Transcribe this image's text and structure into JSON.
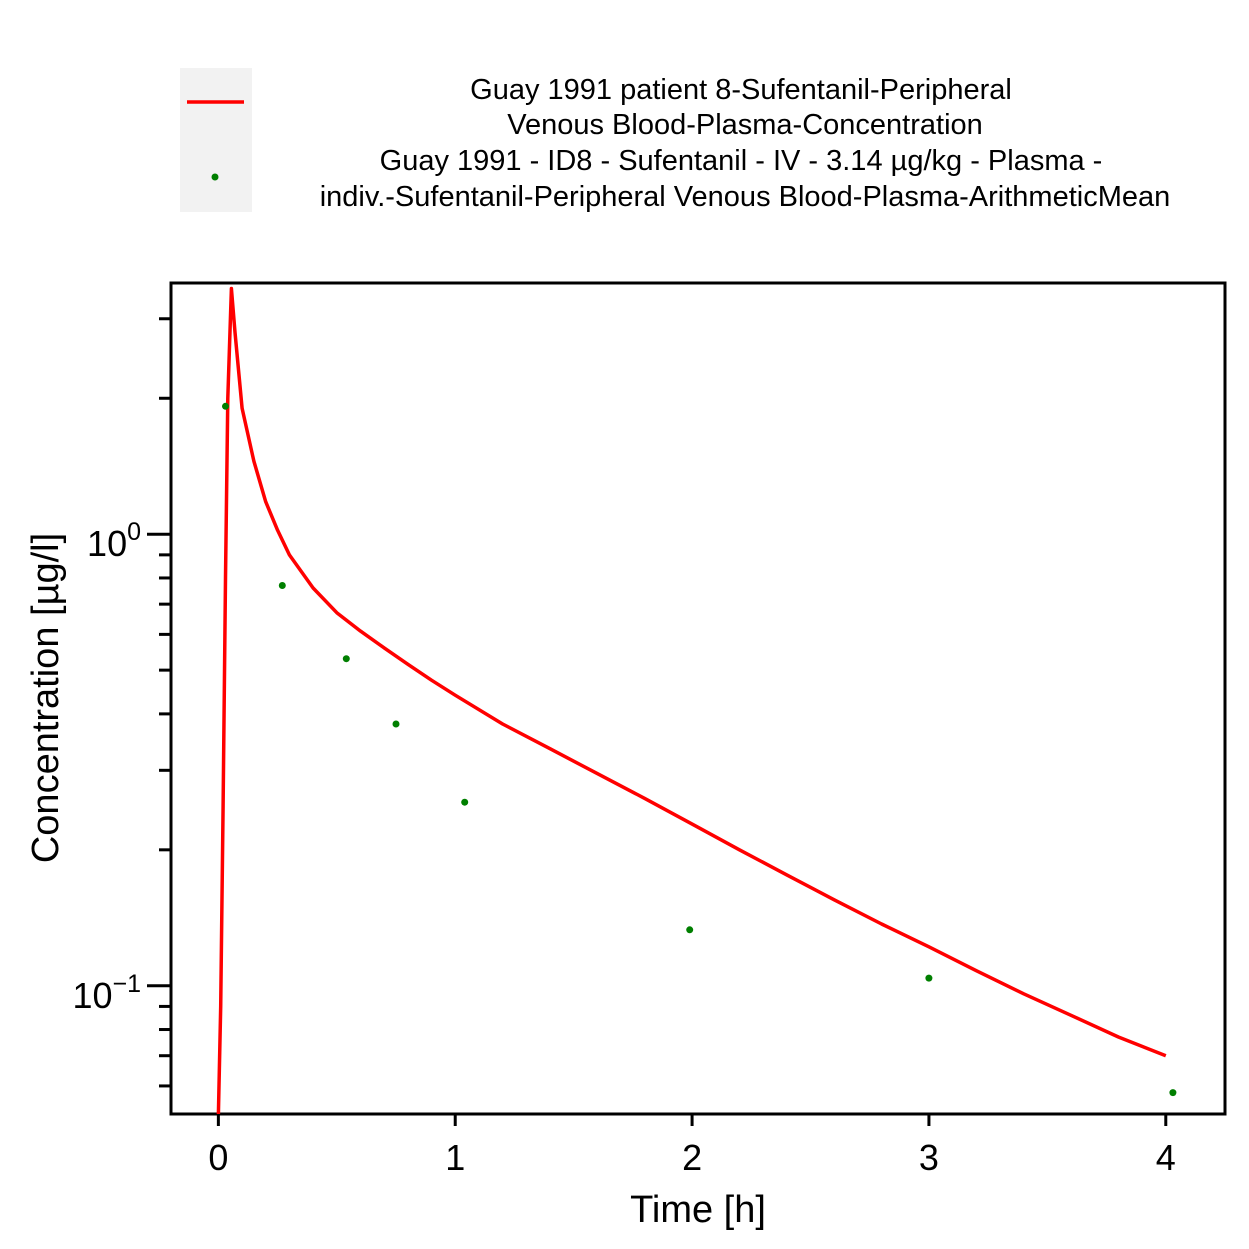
{
  "chart_data": {
    "type": "line",
    "title": "",
    "xlabel": "Time [h]",
    "ylabel": "Concentration [µg/l]",
    "xlim": [
      -0.2,
      4.25
    ],
    "ylim": [
      0.052,
      3.6
    ],
    "yscale": "log",
    "grid": false,
    "legend_position": "top",
    "x_ticks": [
      {
        "value": 0,
        "label": "0"
      },
      {
        "value": 1,
        "label": "1"
      },
      {
        "value": 2,
        "label": "2"
      },
      {
        "value": 3,
        "label": "3"
      },
      {
        "value": 4,
        "label": "4"
      }
    ],
    "y_major_ticks": [
      {
        "value": 1,
        "base": "10",
        "exp": "0"
      },
      {
        "value": 0.1,
        "base": "10",
        "exp": "−1"
      }
    ],
    "y_minor_ticks": [
      0.06,
      0.07,
      0.08,
      0.09,
      0.2,
      0.3,
      0.4,
      0.5,
      0.6,
      0.7,
      0.8,
      0.9,
      2,
      3
    ],
    "series": [
      {
        "name_lines": [
          "Guay 1991 patient 8-Sufentanil-Peripheral",
          "Venous Blood-Plasma-Concentration"
        ],
        "kind": "line",
        "color": "#ff0000",
        "points": [
          [
            0.0,
            0.052
          ],
          [
            0.01,
            0.09
          ],
          [
            0.02,
            0.25
          ],
          [
            0.03,
            0.8
          ],
          [
            0.04,
            2.0
          ],
          [
            0.055,
            3.5
          ],
          [
            0.07,
            2.8
          ],
          [
            0.1,
            1.9
          ],
          [
            0.15,
            1.45
          ],
          [
            0.2,
            1.18
          ],
          [
            0.25,
            1.02
          ],
          [
            0.3,
            0.9
          ],
          [
            0.4,
            0.76
          ],
          [
            0.5,
            0.67
          ],
          [
            0.6,
            0.61
          ],
          [
            0.7,
            0.56
          ],
          [
            0.8,
            0.515
          ],
          [
            0.9,
            0.475
          ],
          [
            1.0,
            0.44
          ],
          [
            1.2,
            0.38
          ],
          [
            1.4,
            0.335
          ],
          [
            1.6,
            0.295
          ],
          [
            1.8,
            0.26
          ],
          [
            2.0,
            0.228
          ],
          [
            2.2,
            0.2
          ],
          [
            2.4,
            0.176
          ],
          [
            2.6,
            0.155
          ],
          [
            2.8,
            0.137
          ],
          [
            3.0,
            0.122
          ],
          [
            3.2,
            0.108
          ],
          [
            3.4,
            0.096
          ],
          [
            3.6,
            0.086
          ],
          [
            3.8,
            0.077
          ],
          [
            4.0,
            0.07
          ]
        ]
      },
      {
        "name_lines": [
          "Guay 1991 - ID8 - Sufentanil - IV - 3.14 µg/kg - Plasma -",
          "indiv.-Sufentanil-Peripheral Venous Blood-Plasma-ArithmeticMean"
        ],
        "kind": "scatter",
        "color": "#007f00",
        "points": [
          [
            0.03,
            1.92
          ],
          [
            0.27,
            0.77
          ],
          [
            0.54,
            0.53
          ],
          [
            0.75,
            0.38
          ],
          [
            1.04,
            0.255
          ],
          [
            1.99,
            0.133
          ],
          [
            3.0,
            0.104
          ],
          [
            4.03,
            0.058
          ]
        ]
      }
    ]
  }
}
